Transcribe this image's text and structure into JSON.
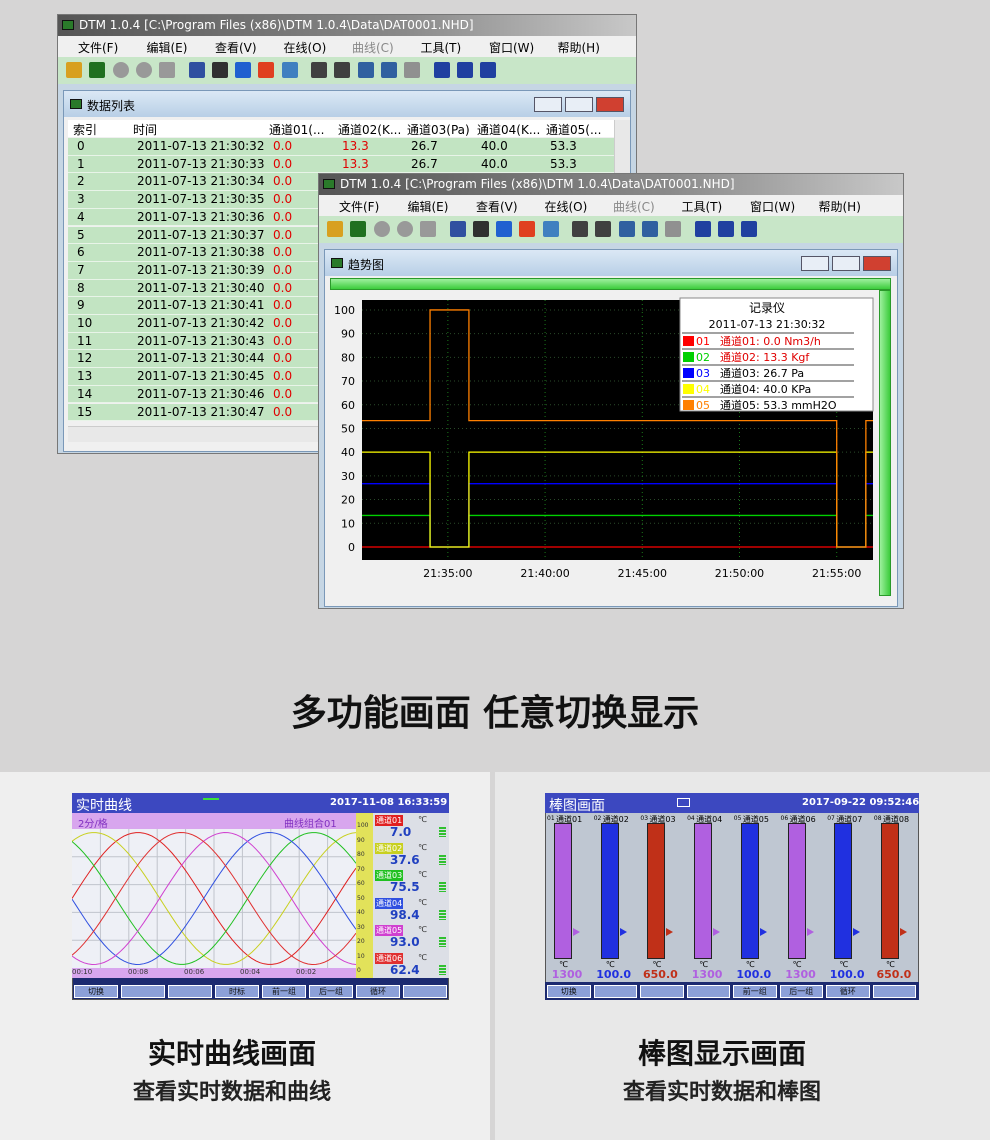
{
  "app": {
    "title": "DTM 1.0.4 [C:\\Program Files (x86)\\DTM 1.0.4\\Data\\DAT0001.NHD]",
    "menu": [
      "文件(F)",
      "编辑(E)",
      "查看(V)",
      "在线(O)",
      "曲线(C)",
      "工具(T)",
      "窗口(W)",
      "帮助(H)"
    ]
  },
  "data_list": {
    "title": "数据列表",
    "headers": [
      "索引",
      "时间",
      "通道01(...",
      "通道02(K...",
      "通道03(Pa)",
      "通道04(K...",
      "通道05(..."
    ],
    "rows": [
      [
        "0",
        "2011-07-13 21:30:32",
        "0.0",
        "13.3",
        "26.7",
        "40.0",
        "53.3"
      ],
      [
        "1",
        "2011-07-13 21:30:33",
        "0.0",
        "13.3",
        "26.7",
        "40.0",
        "53.3"
      ],
      [
        "2",
        "2011-07-13 21:30:34",
        "0.0"
      ],
      [
        "3",
        "2011-07-13 21:30:35",
        "0.0"
      ],
      [
        "4",
        "2011-07-13 21:30:36",
        "0.0"
      ],
      [
        "5",
        "2011-07-13 21:30:37",
        "0.0"
      ],
      [
        "6",
        "2011-07-13 21:30:38",
        "0.0"
      ],
      [
        "7",
        "2011-07-13 21:30:39",
        "0.0"
      ],
      [
        "8",
        "2011-07-13 21:30:40",
        "0.0"
      ],
      [
        "9",
        "2011-07-13 21:30:41",
        "0.0"
      ],
      [
        "10",
        "2011-07-13 21:30:42",
        "0.0"
      ],
      [
        "11",
        "2011-07-13 21:30:43",
        "0.0"
      ],
      [
        "12",
        "2011-07-13 21:30:44",
        "0.0"
      ],
      [
        "13",
        "2011-07-13 21:30:45",
        "0.0"
      ],
      [
        "14",
        "2011-07-13 21:30:46",
        "0.0"
      ],
      [
        "15",
        "2011-07-13 21:30:47",
        "0.0"
      ]
    ]
  },
  "chart_data": {
    "type": "line",
    "title": "趋势图",
    "legend_title": "记录仪",
    "legend_time": "2011-07-13 21:30:32",
    "grid": true,
    "x": [
      "21:30:35",
      "21:34:05",
      "21:34:05",
      "21:36:05",
      "21:36:05",
      "21:55:00",
      "21:55:00",
      "21:56:30",
      "21:56:30",
      "21:56:52"
    ],
    "xlim": [
      "21:30:35",
      "21:56:52"
    ],
    "xticks": [
      "21:35:00",
      "21:40:00",
      "21:45:00",
      "21:50:00",
      "21:55:00"
    ],
    "ylim": [
      -5.5,
      104.2
    ],
    "yticks": [
      0,
      10,
      20,
      30,
      40,
      50,
      60,
      70,
      80,
      90,
      100
    ],
    "series": [
      {
        "name": "通道01: 0.0 Nm3/h",
        "code": "01",
        "color": "#ff0000",
        "values": [
          0,
          0,
          0,
          0,
          0,
          0,
          0,
          0,
          0,
          0
        ]
      },
      {
        "name": "通道02: 13.3 Kgf",
        "code": "02",
        "color": "#00d000",
        "values": [
          13.3,
          13.3,
          0,
          0,
          13.3,
          13.3,
          0,
          0,
          13.3,
          13.3
        ]
      },
      {
        "name": "通道03: 26.7 Pa",
        "code": "03",
        "color": "#0000ff",
        "values": [
          26.7,
          26.7,
          0,
          0,
          26.7,
          26.7,
          0,
          0,
          26.7,
          26.7
        ]
      },
      {
        "name": "通道04: 40.0 KPa",
        "code": "04",
        "color": "#ffff00",
        "values": [
          40,
          40,
          0,
          0,
          40,
          40,
          0,
          0,
          40,
          40
        ]
      },
      {
        "name": "通道05: 53.3 mmH2O",
        "code": "05",
        "color": "#ff8000",
        "values": [
          53.3,
          53.3,
          100,
          100,
          53.3,
          53.3,
          0,
          0,
          53.3,
          53.3
        ]
      }
    ]
  },
  "headline": "多功能画面 任意切换显示",
  "realtime": {
    "title": "实时曲线",
    "datetime": "2017-11-08 16:33:59",
    "scale_label": "2分/格",
    "group": "曲线组合01",
    "scale": [
      100,
      90,
      80,
      70,
      60,
      50,
      40,
      30,
      20,
      10,
      0
    ],
    "time_labels": [
      "00:10",
      "00:08",
      "00:06",
      "00:04",
      "00:02"
    ],
    "channels": [
      {
        "name": "通道01",
        "unit": "℃",
        "value": "7.0",
        "color": "#e02020"
      },
      {
        "name": "通道02",
        "unit": "℃",
        "value": "37.6",
        "color": "#c8d020"
      },
      {
        "name": "通道03",
        "unit": "℃",
        "value": "75.5",
        "color": "#20c020"
      },
      {
        "name": "通道04",
        "unit": "℃",
        "value": "98.4",
        "color": "#3050e0"
      },
      {
        "name": "通道05",
        "unit": "℃",
        "value": "93.0",
        "color": "#d040d0"
      },
      {
        "name": "通道06",
        "unit": "℃",
        "value": "62.4",
        "color": "#e03030"
      }
    ],
    "buttons": [
      "切换",
      "时标",
      "前一组",
      "后一组",
      "循环"
    ],
    "caption": "实时曲线画面",
    "subcaption": "查看实时数据和曲线"
  },
  "bargraph": {
    "title": "棒图画面",
    "datetime": "2017-09-22 09:52:46",
    "channels": [
      {
        "code": "01",
        "name": "通道01",
        "unit": "℃",
        "value": "1300",
        "color": "#b060e0"
      },
      {
        "code": "02",
        "name": "通道02",
        "unit": "℃",
        "value": "100.0",
        "color": "#2030e0"
      },
      {
        "code": "03",
        "name": "通道03",
        "unit": "℃",
        "value": "650.0",
        "color": "#c03018"
      },
      {
        "code": "04",
        "name": "通道04",
        "unit": "℃",
        "value": "1300",
        "color": "#b060e0"
      },
      {
        "code": "05",
        "name": "通道05",
        "unit": "℃",
        "value": "100.0",
        "color": "#2030e0"
      },
      {
        "code": "06",
        "name": "通道06",
        "unit": "℃",
        "value": "1300",
        "color": "#b060e0"
      },
      {
        "code": "07",
        "name": "通道07",
        "unit": "℃",
        "value": "100.0",
        "color": "#2030e0"
      },
      {
        "code": "08",
        "name": "通道08",
        "unit": "℃",
        "value": "650.0",
        "color": "#c03018"
      }
    ],
    "buttons": [
      "切换",
      "前一组",
      "后一组",
      "循环"
    ],
    "caption": "棒图显示画面",
    "subcaption": "查看实时数据和棒图"
  }
}
